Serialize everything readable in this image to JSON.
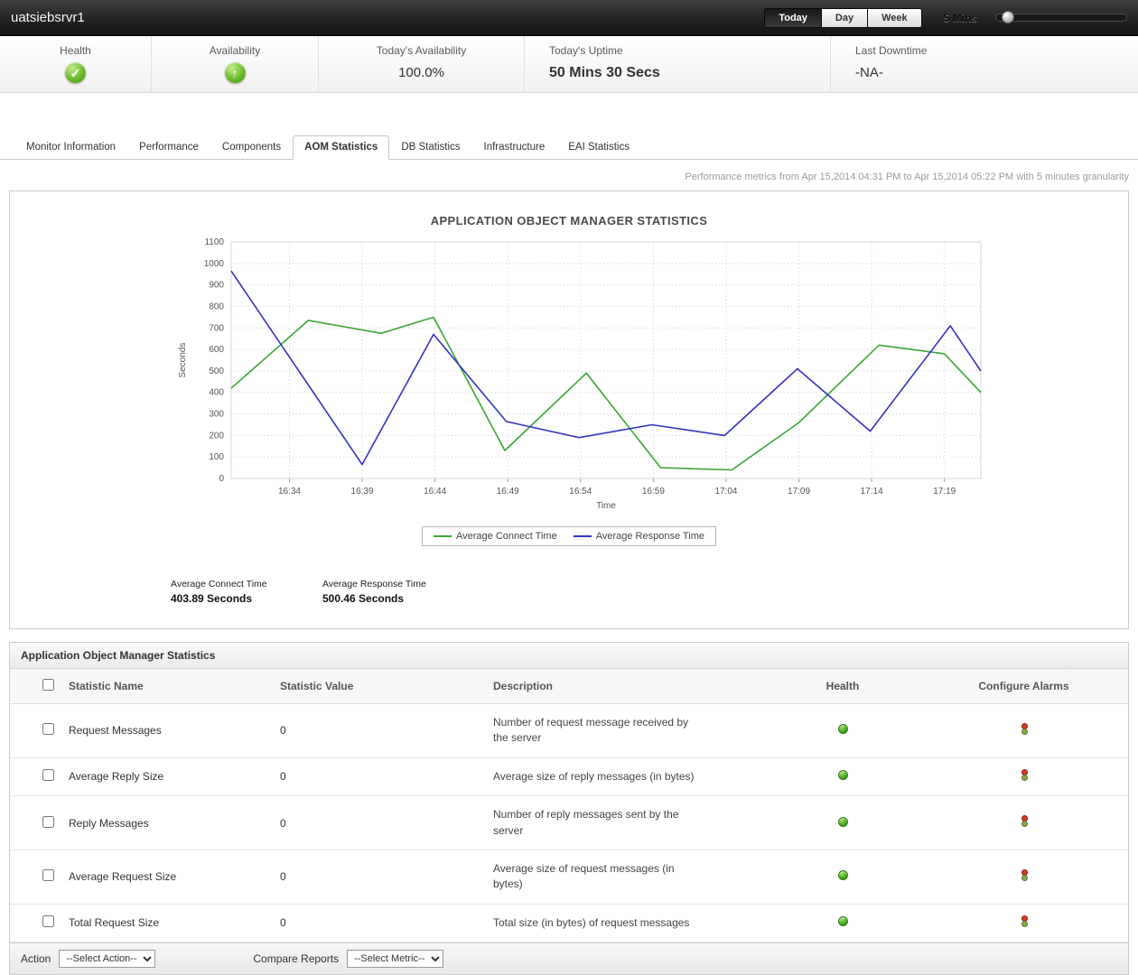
{
  "topbar": {
    "title": "uatsiebsrvr1",
    "period_buttons": [
      {
        "label": "Today",
        "active": true
      },
      {
        "label": "Day",
        "active": false
      },
      {
        "label": "Week",
        "active": false
      }
    ],
    "granularity_label": "5 Mins"
  },
  "status_strip": {
    "cells": [
      {
        "label": "Health",
        "value": "",
        "icon": "green-check"
      },
      {
        "label": "Availability",
        "value": "",
        "icon": "green-up-arrow"
      },
      {
        "label": "Today's Availability",
        "value": "100.0%"
      },
      {
        "label": "Today's Uptime",
        "value": "50 Mins 30 Secs"
      },
      {
        "label": "Last Downtime",
        "value": "-NA-"
      }
    ]
  },
  "tabs": [
    {
      "label": "Monitor Information",
      "active": false
    },
    {
      "label": "Performance",
      "active": false
    },
    {
      "label": "Components",
      "active": false
    },
    {
      "label": "AOM Statistics",
      "active": true
    },
    {
      "label": "DB Statistics",
      "active": false
    },
    {
      "label": "Infrastructure",
      "active": false
    },
    {
      "label": "EAI Statistics",
      "active": false
    }
  ],
  "metrics_info": "Performance metrics from Apr 15,2014 04:31 PM to Apr 15,2014 05:22 PM with 5 minutes granularity",
  "chart_data": {
    "type": "line",
    "title": "APPLICATION OBJECT MANAGER STATISTICS",
    "xlabel": "Time",
    "ylabel": "Seconds",
    "ylim": [
      0,
      1100
    ],
    "ytick_step": 100,
    "grid": "dotted",
    "legend_position": "bottom",
    "x_ticks": [
      "16:34",
      "16:39",
      "16:44",
      "16:49",
      "16:54",
      "16:59",
      "17:04",
      "17:09",
      "17:14",
      "17:19"
    ],
    "x_tick_minutes": [
      4,
      9,
      14,
      19,
      24,
      29,
      34,
      39,
      44,
      49
    ],
    "x_range_minutes": [
      0,
      51.5
    ],
    "series": [
      {
        "name": "Average Connect Time",
        "color": "#3aa637",
        "points": [
          [
            0,
            420
          ],
          [
            5.3,
            735
          ],
          [
            10.3,
            675
          ],
          [
            13.9,
            750
          ],
          [
            18.8,
            130
          ],
          [
            24.4,
            490
          ],
          [
            29.5,
            50
          ],
          [
            34.4,
            40
          ],
          [
            39,
            260
          ],
          [
            44.5,
            620
          ],
          [
            49,
            580
          ],
          [
            51.5,
            400
          ]
        ]
      },
      {
        "name": "Average Response Time",
        "color": "#3434c0",
        "points": [
          [
            0,
            965
          ],
          [
            9,
            65
          ],
          [
            13.9,
            670
          ],
          [
            18.9,
            265
          ],
          [
            23.9,
            190
          ],
          [
            28.9,
            250
          ],
          [
            33.9,
            200
          ],
          [
            38.9,
            510
          ],
          [
            43.9,
            220
          ],
          [
            49.4,
            710
          ],
          [
            51.5,
            500
          ]
        ]
      }
    ]
  },
  "chart_summary": [
    {
      "label": "Average Connect Time",
      "value": "403.89 Seconds"
    },
    {
      "label": "Average Response Time",
      "value": "500.46 Seconds"
    }
  ],
  "table": {
    "title": "Application Object Manager Statistics",
    "columns": {
      "name": "Statistic Name",
      "value": "Statistic Value",
      "description": "Description",
      "health": "Health",
      "alarms": "Configure Alarms"
    },
    "rows": [
      {
        "name": "Request Messages",
        "value": "0",
        "description": "Number of request message received by the server",
        "health": "green"
      },
      {
        "name": "Average Reply Size",
        "value": "0",
        "description": "Average size of reply messages (in bytes)",
        "health": "green"
      },
      {
        "name": "Reply Messages",
        "value": "0",
        "description": "Number of reply messages sent by the server",
        "health": "green"
      },
      {
        "name": "Average Request Size",
        "value": "0",
        "description": "Average size of request messages (in bytes)",
        "health": "green"
      },
      {
        "name": "Total Request Size",
        "value": "0",
        "description": "Total size (in bytes) of request messages",
        "health": "green"
      }
    ]
  },
  "footer": {
    "action_label": "Action",
    "action_select_value": "--Select Action--",
    "compare_label": "Compare Reports",
    "metric_select_value": "--Select Metric--"
  }
}
